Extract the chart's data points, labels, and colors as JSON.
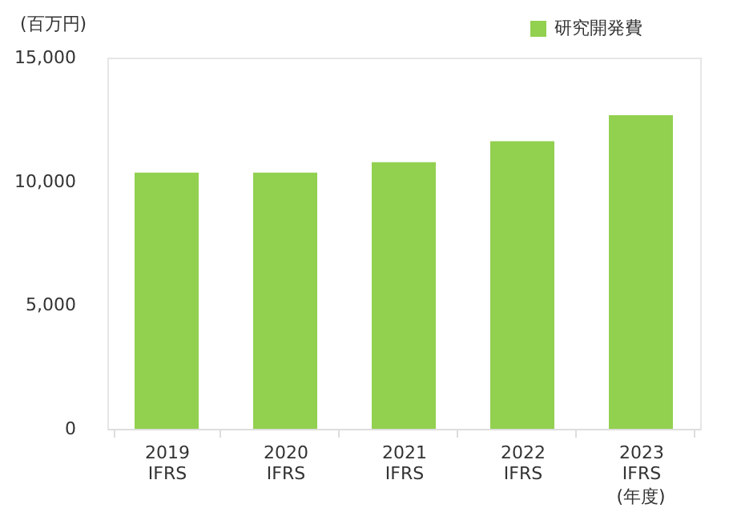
{
  "chart_data": {
    "type": "bar",
    "ylabel": "(百万円)",
    "xlabel": "(年度)",
    "categories": [
      "2019\nIFRS",
      "2020\nIFRS",
      "2021\nIFRS",
      "2022\nIFRS",
      "2023\nIFRS"
    ],
    "series": [
      {
        "name": "研究開発費",
        "color": "#92d050",
        "values": [
          10350,
          10350,
          10770,
          11620,
          12670
        ]
      }
    ],
    "ylim": [
      0,
      15000
    ],
    "yticks": [
      0,
      {
        "value": 5000,
        "label": "5,000"
      },
      {
        "value": 10000,
        "label": "10,000"
      },
      {
        "value": 15000,
        "label": "15,000"
      }
    ],
    "grid": false,
    "legend": "top right"
  }
}
